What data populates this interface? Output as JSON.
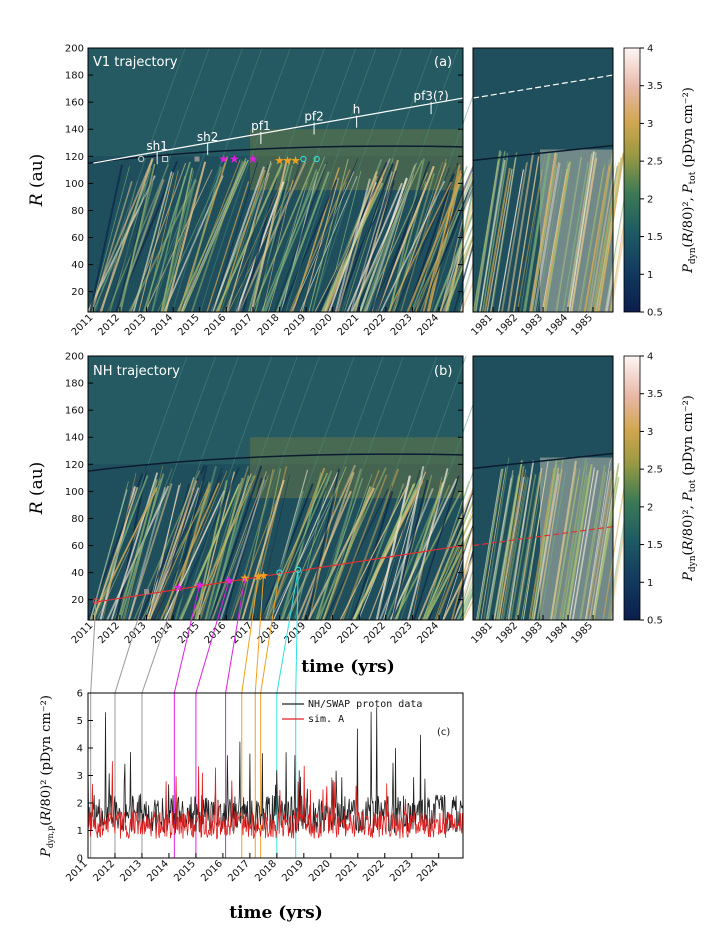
{
  "chart_data": [
    {
      "id": "a",
      "type": "heatmap",
      "panel_title": "V1 trajectory",
      "panel_letter": "(a)",
      "ylabel": "R (au)",
      "ylim": [
        5,
        200
      ],
      "yticks": [
        20,
        40,
        60,
        80,
        100,
        120,
        140,
        160,
        180,
        200
      ],
      "xticks_main": [
        "2011",
        "2012",
        "2013",
        "2014",
        "2015",
        "2016",
        "2017",
        "2018",
        "2019",
        "2020",
        "2021",
        "2022",
        "2023",
        "2024"
      ],
      "xticks_side": [
        "1981",
        "1982",
        "1983",
        "1984",
        "1985"
      ],
      "colorbar": {
        "min": 0.5,
        "max": 4,
        "ticks": [
          0.5,
          1,
          1.5,
          2,
          2.5,
          3,
          3.5,
          4
        ],
        "label": "Pdyn(R/80)², Ptot (pDyn cm⁻²)"
      },
      "trajectory": {
        "x": [
          2011,
          2024.9
        ],
        "y": [
          115,
          163
        ]
      },
      "side_trajectory": {
        "x": [
          1980.2,
          1985.8
        ],
        "y": [
          163,
          180
        ]
      },
      "annotations": [
        {
          "label": "sh1",
          "x": 2013.4,
          "y": 123
        },
        {
          "label": "sh2",
          "x": 2015.3,
          "y": 130
        },
        {
          "label": "pf1",
          "x": 2017.3,
          "y": 138
        },
        {
          "label": "pf2",
          "x": 2019.3,
          "y": 145
        },
        {
          "label": "h",
          "x": 2020.9,
          "y": 150
        },
        {
          "label": "pf3(?)",
          "x": 2023.7,
          "y": 160
        }
      ],
      "markers": [
        {
          "symbol": "circle",
          "color": "#c8c8c8",
          "x": 2012.8,
          "y": 118
        },
        {
          "symbol": "square",
          "color": "#c8c8c8",
          "x": 2013.7,
          "y": 118
        },
        {
          "symbol": "square-filled",
          "color": "#909090",
          "x": 2014.9,
          "y": 118
        },
        {
          "symbol": "star",
          "color": "#e020e0",
          "x": 2015.9,
          "y": 118
        },
        {
          "symbol": "star",
          "color": "#e020e0",
          "x": 2016.3,
          "y": 118
        },
        {
          "symbol": "star",
          "color": "#e020e0",
          "x": 2017.0,
          "y": 118
        },
        {
          "symbol": "star",
          "color": "#f0a020",
          "x": 2018.0,
          "y": 117
        },
        {
          "symbol": "star",
          "color": "#f0a020",
          "x": 2018.3,
          "y": 117
        },
        {
          "symbol": "star",
          "color": "#f0a020",
          "x": 2018.6,
          "y": 117
        },
        {
          "symbol": "circle",
          "color": "#30e0e0",
          "x": 2018.9,
          "y": 118
        },
        {
          "symbol": "circle",
          "color": "#30e0e0",
          "x": 2019.4,
          "y": 118
        }
      ]
    },
    {
      "id": "b",
      "type": "heatmap",
      "panel_title": "NH trajectory",
      "panel_letter": "(b)",
      "ylabel": "R (au)",
      "xlabel": "time (yrs)",
      "ylim": [
        5,
        200
      ],
      "yticks": [
        20,
        40,
        60,
        80,
        100,
        120,
        140,
        160,
        180,
        200
      ],
      "xticks_main": [
        "2011",
        "2012",
        "2013",
        "2014",
        "2015",
        "2016",
        "2017",
        "2018",
        "2019",
        "2020",
        "2021",
        "2022",
        "2023",
        "2024"
      ],
      "xticks_side": [
        "1981",
        "1982",
        "1983",
        "1984",
        "1985"
      ],
      "colorbar": {
        "min": 0.5,
        "max": 4,
        "ticks": [
          0.5,
          1,
          1.5,
          2,
          2.5,
          3,
          3.5,
          4
        ],
        "label": "Pdyn(R/80)², Ptot (pDyn cm⁻²)"
      },
      "trajectory": {
        "x": [
          2011,
          2024.9
        ],
        "y": [
          18,
          60
        ]
      },
      "side_trajectory": {
        "x": [
          1980.2,
          1985.8
        ],
        "y": [
          60,
          74
        ]
      },
      "markers": [
        {
          "symbol": "circle",
          "color": "#e04040",
          "x": 2011.1,
          "y": 19
        },
        {
          "symbol": "square-filled",
          "color": "#909090",
          "x": 2013.0,
          "y": 26
        },
        {
          "symbol": "star",
          "color": "#e020e0",
          "x": 2014.2,
          "y": 29
        },
        {
          "symbol": "star",
          "color": "#e020e0",
          "x": 2015.0,
          "y": 31
        },
        {
          "symbol": "star",
          "color": "#e020e0",
          "x": 2016.1,
          "y": 34
        },
        {
          "symbol": "star",
          "color": "#f0a020",
          "x": 2016.7,
          "y": 36
        },
        {
          "symbol": "star",
          "color": "#f0a020",
          "x": 2017.2,
          "y": 37
        },
        {
          "symbol": "star",
          "color": "#f0a020",
          "x": 2017.4,
          "y": 38
        },
        {
          "symbol": "circle",
          "color": "#30e0e0",
          "x": 2018.0,
          "y": 40
        },
        {
          "symbol": "circle",
          "color": "#30e0e0",
          "x": 2018.7,
          "y": 42
        }
      ]
    },
    {
      "id": "c",
      "type": "line",
      "panel_letter": "(c)",
      "xlabel": "time (yrs)",
      "ylabel": "Pdyn,p(R/80)² (pDyn cm⁻²)",
      "ylim": [
        0,
        6
      ],
      "yticks": [
        0,
        1,
        2,
        3,
        4,
        5,
        6
      ],
      "xticks": [
        "2011",
        "2012",
        "2013",
        "2014",
        "2015",
        "2016",
        "2017",
        "2018",
        "2019",
        "2020",
        "2021",
        "2022",
        "2023",
        "2024"
      ],
      "series": [
        {
          "name": "NH/SWAP proton data",
          "color": "#222222"
        },
        {
          "name": "sim. A",
          "color": "#e02020"
        }
      ],
      "event_lines": [
        {
          "x": 2011.1,
          "color": "#999999"
        },
        {
          "x": 2012.0,
          "color": "#999999"
        },
        {
          "x": 2013.0,
          "color": "#999999"
        },
        {
          "x": 2014.2,
          "color": "#e020e0"
        },
        {
          "x": 2015.0,
          "color": "#e020e0"
        },
        {
          "x": 2016.1,
          "color": "#e020e0"
        },
        {
          "x": 2016.7,
          "color": "#f0a020"
        },
        {
          "x": 2017.2,
          "color": "#f0a020"
        },
        {
          "x": 2017.4,
          "color": "#f0a020"
        },
        {
          "x": 2018.0,
          "color": "#30e0e0"
        },
        {
          "x": 2018.7,
          "color": "#30e0e0"
        }
      ]
    }
  ]
}
